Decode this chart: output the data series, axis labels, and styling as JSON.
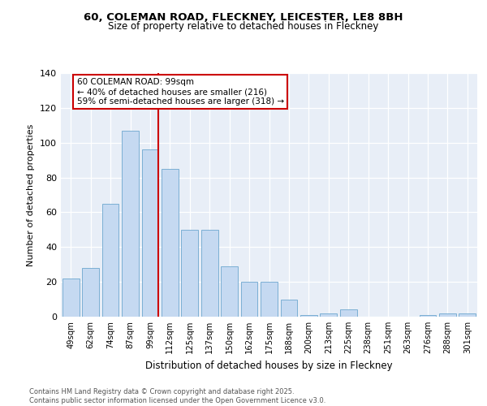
{
  "title_line1": "60, COLEMAN ROAD, FLECKNEY, LEICESTER, LE8 8BH",
  "title_line2": "Size of property relative to detached houses in Fleckney",
  "xlabel": "Distribution of detached houses by size in Fleckney",
  "ylabel": "Number of detached properties",
  "categories": [
    "49sqm",
    "62sqm",
    "74sqm",
    "87sqm",
    "99sqm",
    "112sqm",
    "125sqm",
    "137sqm",
    "150sqm",
    "162sqm",
    "175sqm",
    "188sqm",
    "200sqm",
    "213sqm",
    "225sqm",
    "238sqm",
    "251sqm",
    "263sqm",
    "276sqm",
    "288sqm",
    "301sqm"
  ],
  "values": [
    22,
    28,
    65,
    107,
    96,
    85,
    50,
    50,
    29,
    20,
    20,
    10,
    1,
    2,
    4,
    0,
    0,
    0,
    1,
    2,
    2
  ],
  "bar_color": "#C5D9F1",
  "bar_edge_color": "#7BAFD4",
  "red_line_index": 4,
  "annotation_title": "60 COLEMAN ROAD: 99sqm",
  "annotation_line2": "← 40% of detached houses are smaller (216)",
  "annotation_line3": "59% of semi-detached houses are larger (318) →",
  "annotation_box_color": "#ffffff",
  "annotation_box_edge": "#cc0000",
  "red_line_color": "#cc0000",
  "ylim": [
    0,
    140
  ],
  "yticks": [
    0,
    20,
    40,
    60,
    80,
    100,
    120,
    140
  ],
  "bg_color": "#E8EEF7",
  "footer_line1": "Contains HM Land Registry data © Crown copyright and database right 2025.",
  "footer_line2": "Contains public sector information licensed under the Open Government Licence v3.0."
}
